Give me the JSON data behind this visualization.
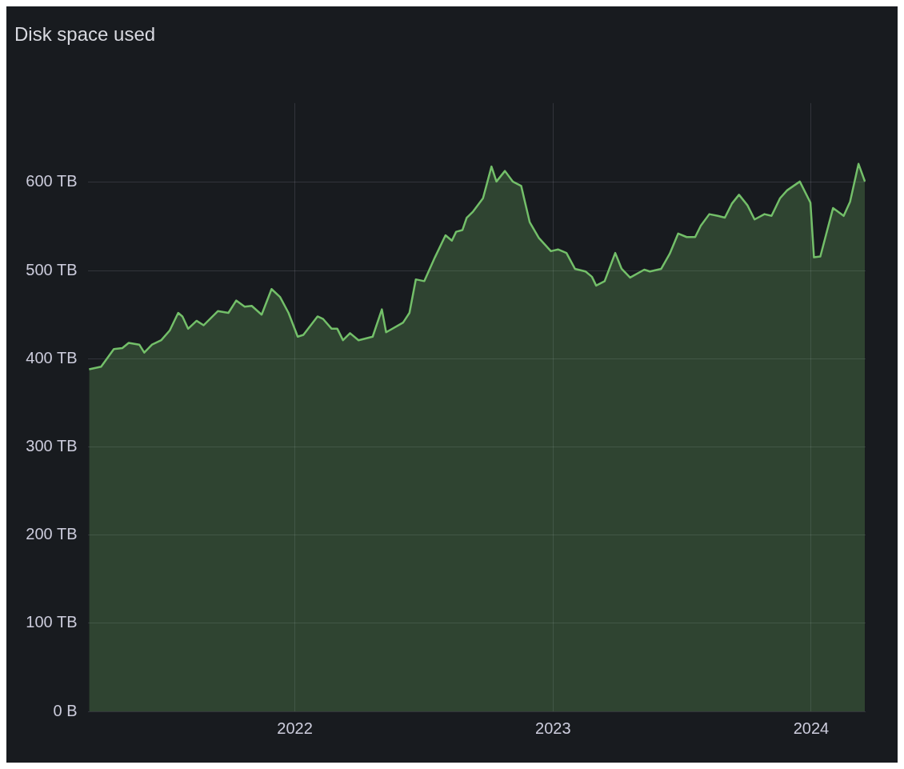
{
  "chart_data": {
    "type": "area",
    "title": "Disk space used",
    "x": [
      "2021-03-16",
      "2021-04-02",
      "2021-04-20",
      "2021-05-02",
      "2021-05-11",
      "2021-05-26",
      "2021-06-02",
      "2021-06-13",
      "2021-06-26",
      "2021-07-08",
      "2021-07-20",
      "2021-07-26",
      "2021-08-03",
      "2021-08-15",
      "2021-08-25",
      "2021-09-14",
      "2021-09-29",
      "2021-10-10",
      "2021-10-22",
      "2021-11-01",
      "2021-11-15",
      "2021-11-29",
      "2021-12-11",
      "2021-12-23",
      "2022-01-05",
      "2022-01-13",
      "2022-02-02",
      "2022-02-10",
      "2022-02-22",
      "2022-03-02",
      "2022-03-10",
      "2022-03-20",
      "2022-04-01",
      "2022-04-21",
      "2022-05-04",
      "2022-05-10",
      "2022-06-03",
      "2022-06-12",
      "2022-06-21",
      "2022-07-03",
      "2022-07-18",
      "2022-08-02",
      "2022-08-11",
      "2022-08-17",
      "2022-08-26",
      "2022-09-01",
      "2022-09-10",
      "2022-09-24",
      "2022-10-06",
      "2022-10-13",
      "2022-10-25",
      "2022-11-05",
      "2022-11-17",
      "2022-11-29",
      "2022-12-12",
      "2022-12-29",
      "2023-01-08",
      "2023-01-20",
      "2023-02-01",
      "2023-02-16",
      "2023-02-25",
      "2023-03-03",
      "2023-03-15",
      "2023-03-30",
      "2023-04-08",
      "2023-04-20",
      "2023-05-10",
      "2023-05-18",
      "2023-06-03",
      "2023-06-15",
      "2023-06-27",
      "2023-07-09",
      "2023-07-21",
      "2023-07-29",
      "2023-08-10",
      "2023-08-22",
      "2023-09-01",
      "2023-09-11",
      "2023-09-21",
      "2023-10-03",
      "2023-10-13",
      "2023-10-27",
      "2023-11-06",
      "2023-11-18",
      "2023-11-28",
      "2023-12-16",
      "2023-12-31",
      "2024-01-05",
      "2024-01-14",
      "2024-02-01",
      "2024-02-16",
      "2024-02-25",
      "2024-03-08",
      "2024-03-17"
    ],
    "series": [
      {
        "color": "#73bf69",
        "values": [
          388,
          391,
          411,
          412,
          418,
          416,
          407,
          416,
          421,
          432,
          452,
          448,
          434,
          443,
          438,
          454,
          452,
          466,
          459,
          460,
          450,
          479,
          470,
          452,
          425,
          427,
          448,
          445,
          434,
          434,
          421,
          429,
          421,
          425,
          456,
          430,
          441,
          452,
          490,
          488,
          515,
          540,
          534,
          544,
          546,
          560,
          567,
          582,
          618,
          601,
          613,
          601,
          596,
          555,
          537,
          522,
          524,
          520,
          502,
          499,
          493,
          483,
          488,
          520,
          502,
          492,
          501,
          499,
          502,
          519,
          542,
          538,
          538,
          551,
          564,
          562,
          560,
          576,
          586,
          574,
          558,
          564,
          562,
          582,
          591,
          601,
          577,
          515,
          516,
          571,
          562,
          578,
          621,
          601
        ]
      }
    ],
    "xlim": [
      "2021-03-15",
      "2024-03-18"
    ],
    "xticks": [
      {
        "value": "2022-01-01",
        "label": "2022"
      },
      {
        "value": "2023-01-01",
        "label": "2023"
      },
      {
        "value": "2024-01-01",
        "label": "2024"
      }
    ],
    "ylim": [
      0,
      690
    ],
    "yticks": [
      {
        "value": 0,
        "label": "0 B"
      },
      {
        "value": 100,
        "label": "100 TB"
      },
      {
        "value": 200,
        "label": "200 TB"
      },
      {
        "value": 300,
        "label": "300 TB"
      },
      {
        "value": 400,
        "label": "400 TB"
      },
      {
        "value": 500,
        "label": "500 TB"
      },
      {
        "value": 600,
        "label": "600 TB"
      }
    ],
    "grid": true,
    "marker": "none",
    "line_style": "solid"
  }
}
